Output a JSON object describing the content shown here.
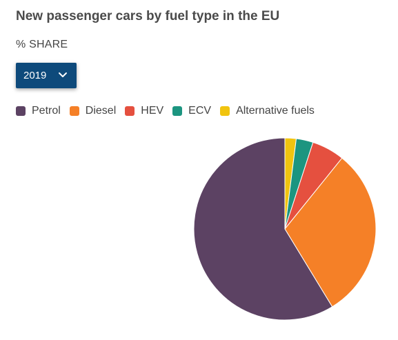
{
  "title": "New passenger cars by fuel type in the EU",
  "subtitle": "% SHARE",
  "year_select": {
    "value": "2019",
    "icon": "chevron-down-icon"
  },
  "legend": [
    {
      "label": "Petrol",
      "color": "#5c4263"
    },
    {
      "label": "Diesel",
      "color": "#f58027"
    },
    {
      "label": "HEV",
      "color": "#e5503f"
    },
    {
      "label": "ECV",
      "color": "#1c9580"
    },
    {
      "label": "Alternative fuels",
      "color": "#f1c40f"
    }
  ],
  "chart_data": {
    "type": "pie",
    "year": "2019",
    "series": [
      {
        "name": "Alternative fuels",
        "value": 2.0,
        "color": "#f1c40f"
      },
      {
        "name": "ECV",
        "value": 3.0,
        "color": "#1c9580"
      },
      {
        "name": "HEV",
        "value": 5.8,
        "color": "#e5503f"
      },
      {
        "name": "Diesel",
        "value": 30.5,
        "color": "#f58027"
      },
      {
        "name": "Petrol",
        "value": 58.7,
        "color": "#5c4263"
      }
    ]
  }
}
